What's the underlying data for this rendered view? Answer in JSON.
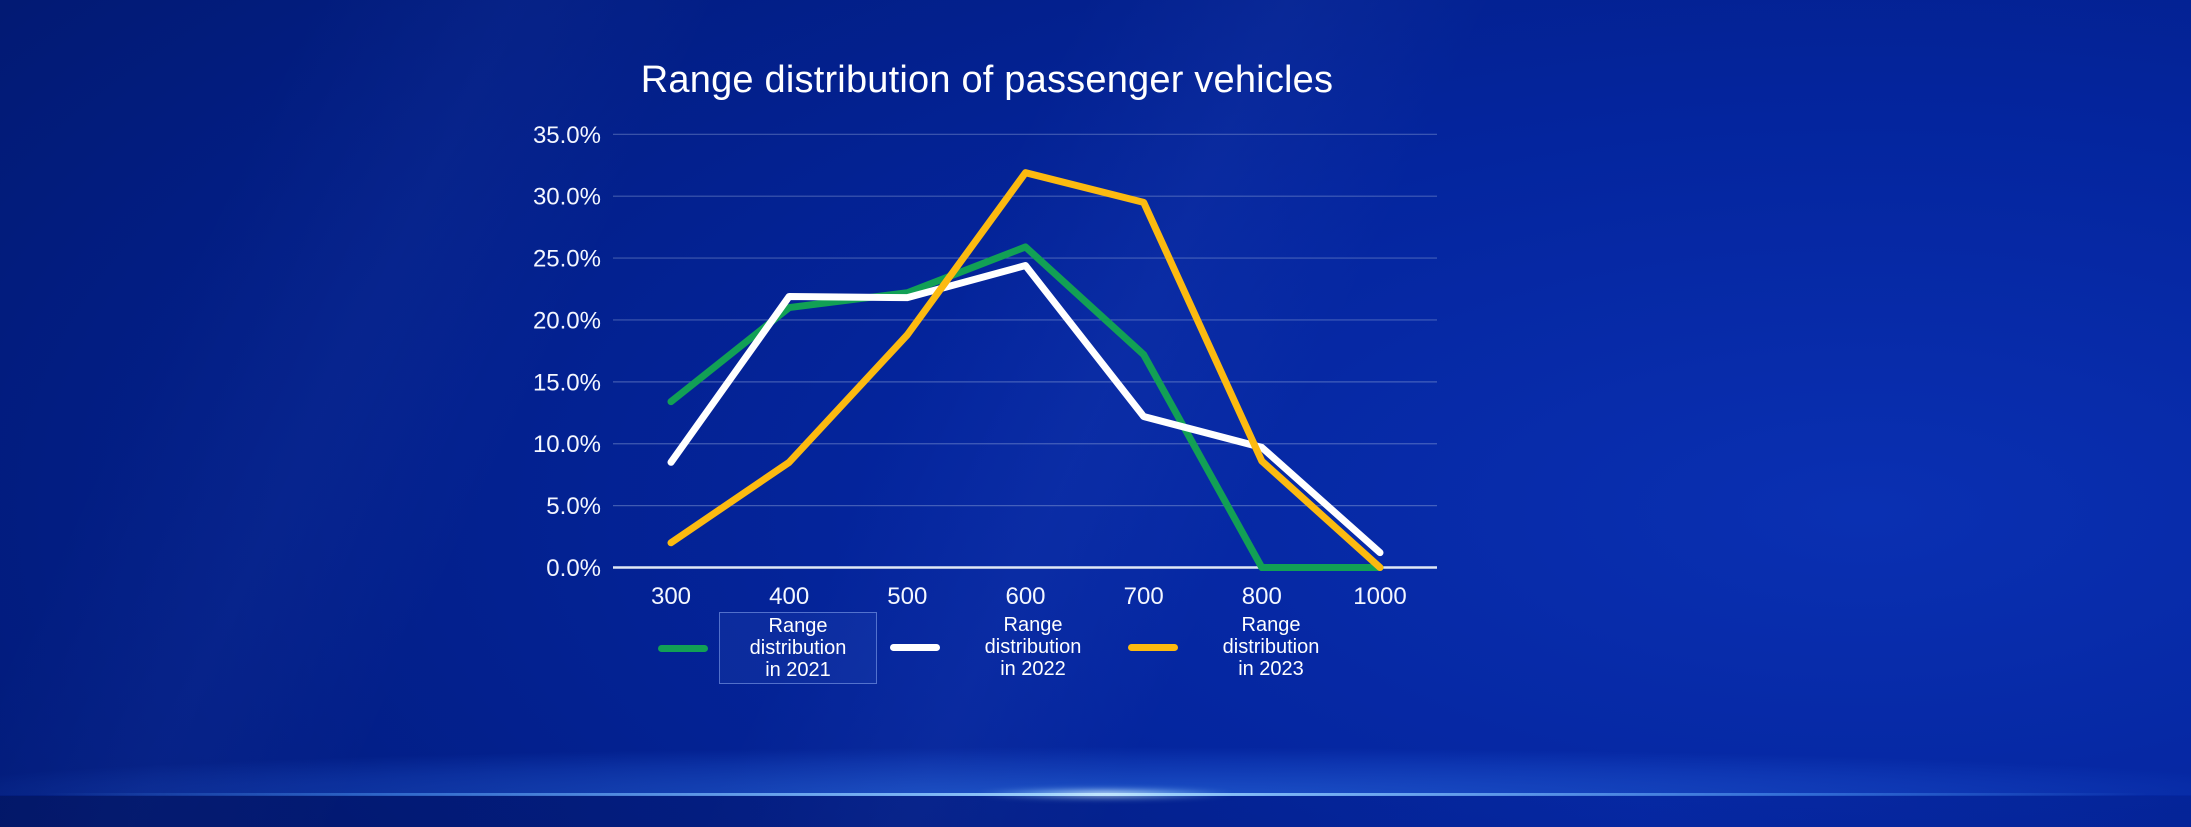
{
  "title": "Range distribution of passenger vehicles",
  "colors": {
    "background_dark": "#011257",
    "background_bright": "#0a30b2",
    "gridline": "rgba(165,185,225,0.38)",
    "axis_line": "#dfe8f5",
    "text": "#ffffff",
    "series_2021": "#12a055",
    "series_2022": "#ffffff",
    "series_2023": "#fcba10",
    "horizon_glow": "#aee0ff"
  },
  "chart_data": {
    "type": "line",
    "title": "Range distribution of passenger vehicles",
    "x_tick_labels": [
      "300",
      "400",
      "500",
      "600",
      "700",
      "800",
      "1000"
    ],
    "y_tick_labels": [
      "35.0%",
      "30.0%",
      "25.0%",
      "20.0%",
      "15.0%",
      "10.0%",
      "5.0%",
      "0.0%"
    ],
    "y_tick_values": [
      35,
      30,
      25,
      20,
      15,
      10,
      5,
      0
    ],
    "ylim": [
      0,
      35
    ],
    "grid": "horizontal",
    "legend_position": "bottom",
    "series": [
      {
        "name": "Range distribution in 2021",
        "label_lines": [
          "Range",
          "distribution",
          "in 2021"
        ],
        "color": "#12a055",
        "legend_boxed": true,
        "values": [
          13.4,
          21.0,
          22.2,
          25.9,
          17.2,
          0.0,
          0.0
        ]
      },
      {
        "name": "Range distribution in 2022",
        "label_lines": [
          "Range",
          "distribution",
          "in 2022"
        ],
        "color": "#ffffff",
        "legend_boxed": false,
        "values": [
          8.5,
          21.9,
          21.8,
          24.4,
          12.2,
          9.7,
          1.2
        ]
      },
      {
        "name": "Range distribution in 2023",
        "label_lines": [
          "Range",
          "distribution",
          "in 2023"
        ],
        "color": "#fcba10",
        "legend_boxed": false,
        "values": [
          2.0,
          8.5,
          18.8,
          31.9,
          29.5,
          8.6,
          0.0
        ]
      }
    ]
  }
}
